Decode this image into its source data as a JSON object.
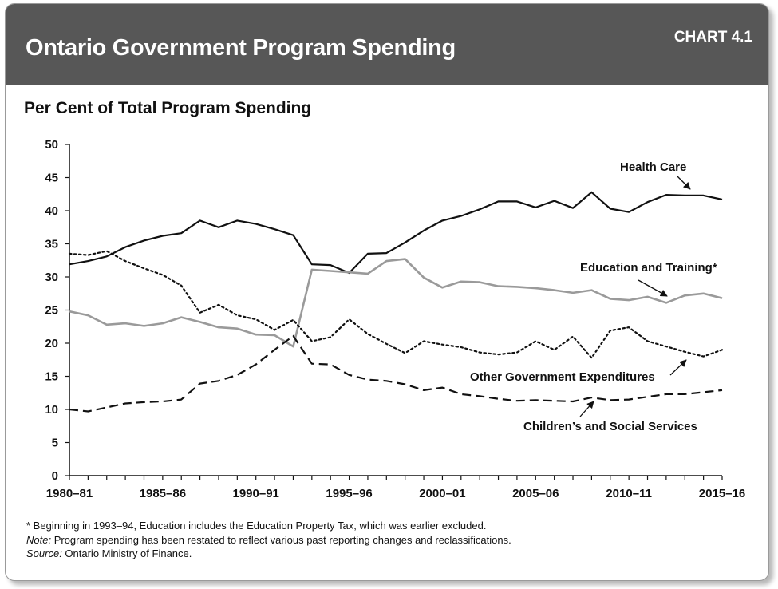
{
  "header": {
    "title": "Ontario Government Program Spending",
    "chart_number": "CHART 4.1"
  },
  "chart_data": {
    "type": "line",
    "title": "Ontario Government Program Spending",
    "ylabel": "Per Cent of Total Program Spending",
    "xlabel": "",
    "ylim": [
      0,
      50
    ],
    "yticks": [
      0,
      5,
      10,
      15,
      20,
      25,
      30,
      35,
      40,
      45,
      50
    ],
    "x": [
      "1980–81",
      "1981–82",
      "1982–83",
      "1983–84",
      "1984–85",
      "1985–86",
      "1986–87",
      "1987–88",
      "1988–89",
      "1989–90",
      "1990–91",
      "1991–92",
      "1992–93",
      "1993–94",
      "1994–95",
      "1995–96",
      "1996–97",
      "1997–98",
      "1998–99",
      "1999–00",
      "2000–01",
      "2001–02",
      "2002–03",
      "2003–04",
      "2004–05",
      "2005–06",
      "2006–07",
      "2007–08",
      "2008–09",
      "2009–10",
      "2010–11",
      "2011–12",
      "2012–13",
      "2013–14",
      "2014–15",
      "2015–16"
    ],
    "xtick_labels": [
      "1980–81",
      "1985–86",
      "1990–91",
      "1995–96",
      "2000–01",
      "2005–06",
      "2010–11",
      "2015–16"
    ],
    "grid": false,
    "legend": "none",
    "series": [
      {
        "name": "Health Care",
        "style": "solid",
        "color": "#111111",
        "values": [
          31.9,
          32.4,
          33.1,
          34.5,
          35.5,
          36.2,
          36.6,
          38.5,
          37.5,
          38.5,
          38.0,
          37.2,
          36.3,
          31.9,
          31.8,
          30.6,
          33.5,
          33.6,
          35.2,
          37.0,
          38.5,
          39.2,
          40.2,
          41.4,
          41.4,
          40.5,
          41.5,
          40.4,
          42.8,
          40.3,
          39.8,
          41.3,
          42.4,
          42.3,
          42.3,
          41.7
        ]
      },
      {
        "name": "Education and Training*",
        "style": "solid",
        "color": "#9a9a9a",
        "values": [
          24.8,
          24.2,
          22.8,
          23.0,
          22.6,
          23.0,
          23.9,
          23.2,
          22.4,
          22.2,
          21.3,
          21.2,
          19.5,
          31.1,
          30.9,
          30.7,
          30.5,
          32.4,
          32.7,
          29.9,
          28.4,
          29.3,
          29.2,
          28.6,
          28.5,
          28.3,
          28.0,
          27.6,
          28.0,
          26.7,
          26.5,
          27.0,
          26.1,
          27.2,
          27.5,
          26.8
        ]
      },
      {
        "name": "Other Government Expenditures",
        "style": "dotted",
        "color": "#111111",
        "values": [
          33.5,
          33.3,
          33.9,
          32.4,
          31.3,
          30.3,
          28.7,
          24.6,
          25.8,
          24.2,
          23.6,
          22.0,
          23.5,
          20.3,
          20.9,
          23.6,
          21.4,
          19.9,
          18.5,
          20.3,
          19.8,
          19.4,
          18.6,
          18.3,
          18.6,
          20.3,
          19.0,
          21.0,
          17.8,
          21.9,
          22.4,
          20.3,
          19.5,
          18.7,
          18.0,
          19.0
        ]
      },
      {
        "name": "Children’s and Social Services",
        "style": "dashed",
        "color": "#111111",
        "values": [
          10.0,
          9.7,
          10.3,
          10.9,
          11.1,
          11.2,
          11.5,
          13.9,
          14.3,
          15.2,
          16.8,
          19.0,
          21.1,
          16.9,
          16.8,
          15.2,
          14.5,
          14.3,
          13.8,
          12.9,
          13.3,
          12.3,
          12.0,
          11.6,
          11.3,
          11.4,
          11.3,
          11.2,
          11.8,
          11.4,
          11.5,
          11.9,
          12.3,
          12.3,
          12.6,
          12.9
        ]
      }
    ],
    "annotations": [
      {
        "text": "Health Care",
        "series": "Health Care"
      },
      {
        "text": "Education and Training*",
        "series": "Education and Training*"
      },
      {
        "text": "Other Government Expenditures",
        "series": "Other Government Expenditures"
      },
      {
        "text": "Children’s and Social Services",
        "series": "Children’s and Social Services"
      }
    ]
  },
  "notes": {
    "footnote": "* Beginning in 1993–94, Education includes the Education Property Tax, which was earlier excluded.",
    "note_label": "Note:",
    "note_text": " Program spending has been restated to reflect various past reporting changes and reclassifications.",
    "source_label": "Source:",
    "source_text": " Ontario Ministry of Finance."
  }
}
